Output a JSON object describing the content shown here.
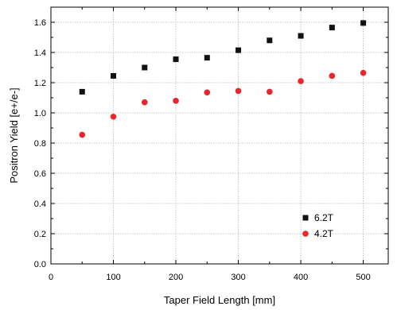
{
  "chart_data": {
    "type": "scatter",
    "xlabel": "Taper Field Length [mm]",
    "ylabel": "Positron Yield [e+/e-]",
    "xlim": [
      0,
      540
    ],
    "ylim": [
      0.0,
      1.7
    ],
    "x_ticks": [
      0,
      100,
      200,
      300,
      400,
      500
    ],
    "x_tick_labels": [
      "0",
      "100",
      "200",
      "300",
      "400",
      "500"
    ],
    "y_ticks": [
      0.0,
      0.2,
      0.4,
      0.6,
      0.8,
      1.0,
      1.2,
      1.4,
      1.6
    ],
    "y_tick_labels": [
      "0.0",
      "0.2",
      "0.4",
      "0.6",
      "0.8",
      "1.0",
      "1.2",
      "1.4",
      "1.6"
    ],
    "grid": true,
    "legend_position": "bottom-right",
    "series": [
      {
        "name": "6.2T",
        "marker": "square",
        "color": "#111111",
        "x": [
          50,
          100,
          150,
          200,
          250,
          300,
          350,
          400,
          450,
          500
        ],
        "y": [
          1.14,
          1.245,
          1.3,
          1.355,
          1.365,
          1.415,
          1.48,
          1.51,
          1.565,
          1.595
        ]
      },
      {
        "name": "4.2T",
        "marker": "circle",
        "color": "#e8262b",
        "x": [
          50,
          100,
          150,
          200,
          250,
          300,
          350,
          400,
          450,
          500
        ],
        "y": [
          0.855,
          0.975,
          1.07,
          1.08,
          1.135,
          1.145,
          1.14,
          1.21,
          1.245,
          1.265
        ]
      }
    ]
  }
}
